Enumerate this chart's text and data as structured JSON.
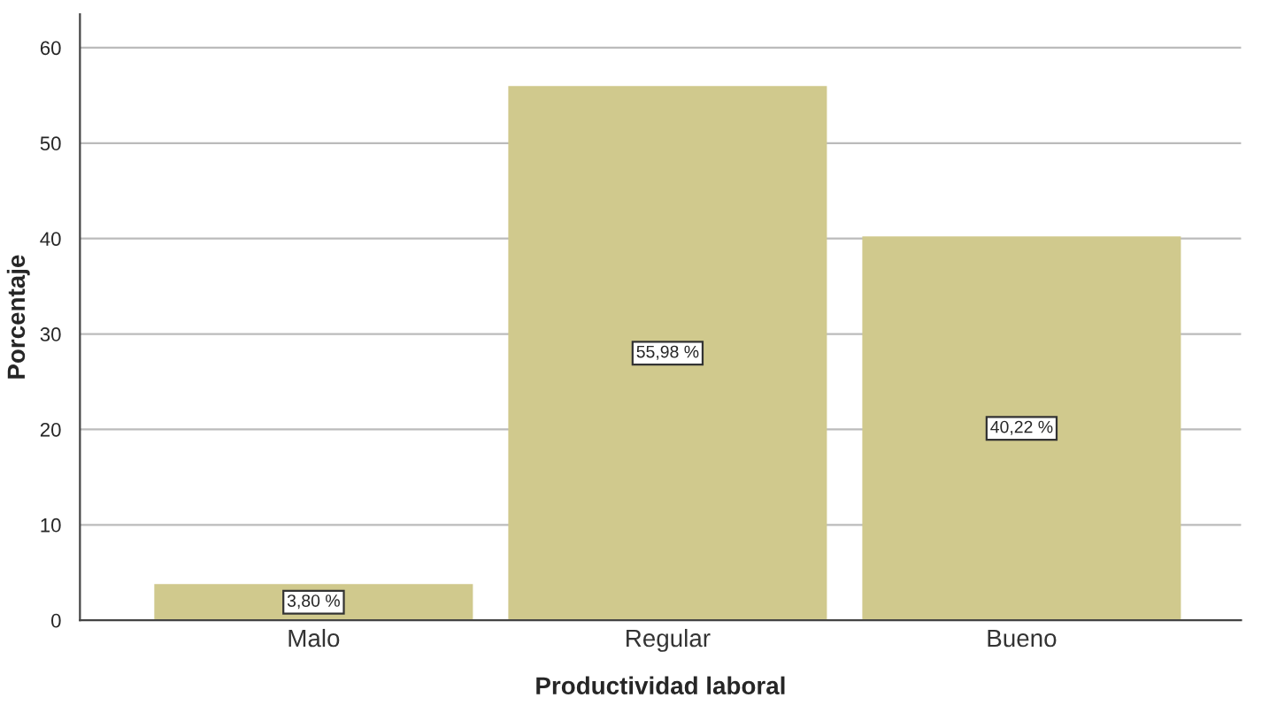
{
  "chart_data": {
    "type": "bar",
    "xlabel": "Productividad laboral",
    "ylabel": "Porcentaje",
    "categories": [
      "Malo",
      "Regular",
      "Bueno"
    ],
    "values": [
      3.8,
      55.98,
      40.22
    ],
    "value_labels": [
      "3,80 %",
      "55,98 %",
      "40,22 %"
    ],
    "color": "#d0c98d",
    "ylim": [
      0,
      63.5
    ],
    "yticks": [
      0,
      10,
      20,
      30,
      40,
      50,
      60
    ],
    "grid": "y"
  }
}
